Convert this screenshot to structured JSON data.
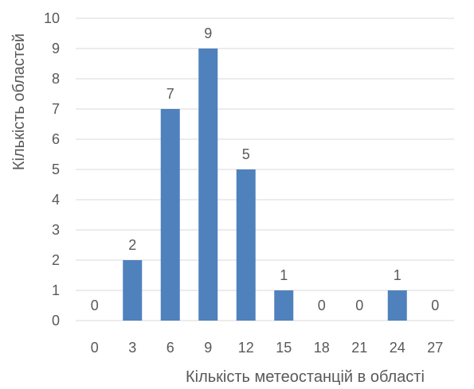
{
  "chart_data": {
    "type": "bar",
    "title": "",
    "xlabel": "Кількість метеостанцій в області",
    "ylabel": "Кількість областей",
    "categories": [
      "0",
      "3",
      "6",
      "9",
      "12",
      "15",
      "18",
      "21",
      "24",
      "27"
    ],
    "values": [
      0,
      2,
      7,
      9,
      5,
      1,
      0,
      0,
      1,
      0
    ],
    "data_labels": [
      "0",
      "2",
      "7",
      "9",
      "5",
      "1",
      "0",
      "0",
      "1",
      "0"
    ],
    "ylim": [
      0,
      10
    ],
    "y_ticks": [
      "0",
      "1",
      "2",
      "3",
      "4",
      "5",
      "6",
      "7",
      "8",
      "9",
      "10"
    ],
    "grid": true,
    "legend": "none",
    "colors": {
      "bar": "#4f81bd",
      "grid": "#d9d9d9",
      "text": "#595959"
    }
  }
}
